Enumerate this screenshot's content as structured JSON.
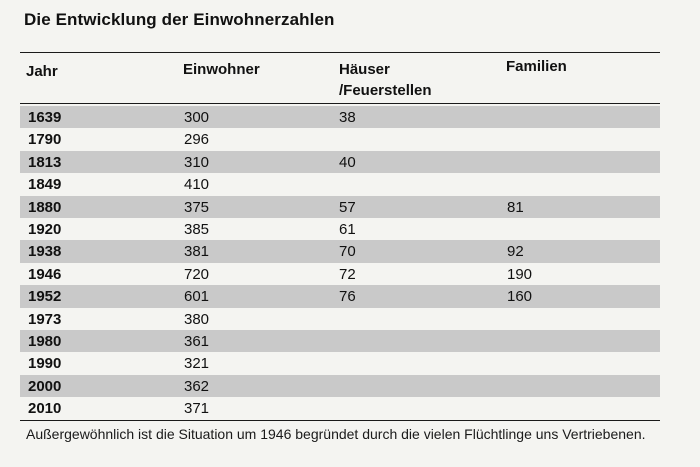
{
  "title": "Die Entwicklung der Einwohnerzahlen",
  "headers": {
    "jahr": "Jahr",
    "einwohner": "Einwohner",
    "haeuser_line1": "Häuser",
    "haeuser_line2": "/Feuerstellen",
    "familien": "Familien"
  },
  "rows": [
    {
      "jahr": "1639",
      "einwohner": "300",
      "haeuser": "38",
      "familien": ""
    },
    {
      "jahr": "1790",
      "einwohner": "296",
      "haeuser": "",
      "familien": ""
    },
    {
      "jahr": "1813",
      "einwohner": "310",
      "haeuser": "40",
      "familien": ""
    },
    {
      "jahr": "1849",
      "einwohner": "410",
      "haeuser": "",
      "familien": ""
    },
    {
      "jahr": "1880",
      "einwohner": "375",
      "haeuser": "57",
      "familien": "81"
    },
    {
      "jahr": "1920",
      "einwohner": "385",
      "haeuser": "61",
      "familien": ""
    },
    {
      "jahr": "1938",
      "einwohner": "381",
      "haeuser": "70",
      "familien": "92"
    },
    {
      "jahr": "1946",
      "einwohner": "720",
      "haeuser": "72",
      "familien": "190"
    },
    {
      "jahr": "1952",
      "einwohner": "601",
      "haeuser": "76",
      "familien": "160"
    },
    {
      "jahr": "1973",
      "einwohner": "380",
      "haeuser": "",
      "familien": ""
    },
    {
      "jahr": "1980",
      "einwohner": "361",
      "haeuser": "",
      "familien": ""
    },
    {
      "jahr": "1990",
      "einwohner": "321",
      "haeuser": "",
      "familien": ""
    },
    {
      "jahr": "2000",
      "einwohner": "362",
      "haeuser": "",
      "familien": ""
    },
    {
      "jahr": "2010",
      "einwohner": "371",
      "haeuser": "",
      "familien": ""
    }
  ],
  "footnote": "Außergewöhnlich ist die Situation um 1946 begründet durch die vielen Flüchtlinge uns Vertriebenen.",
  "colors": {
    "page_background": "#f4f4f1",
    "row_shade": "#c9c9c9",
    "text": "#111111"
  }
}
